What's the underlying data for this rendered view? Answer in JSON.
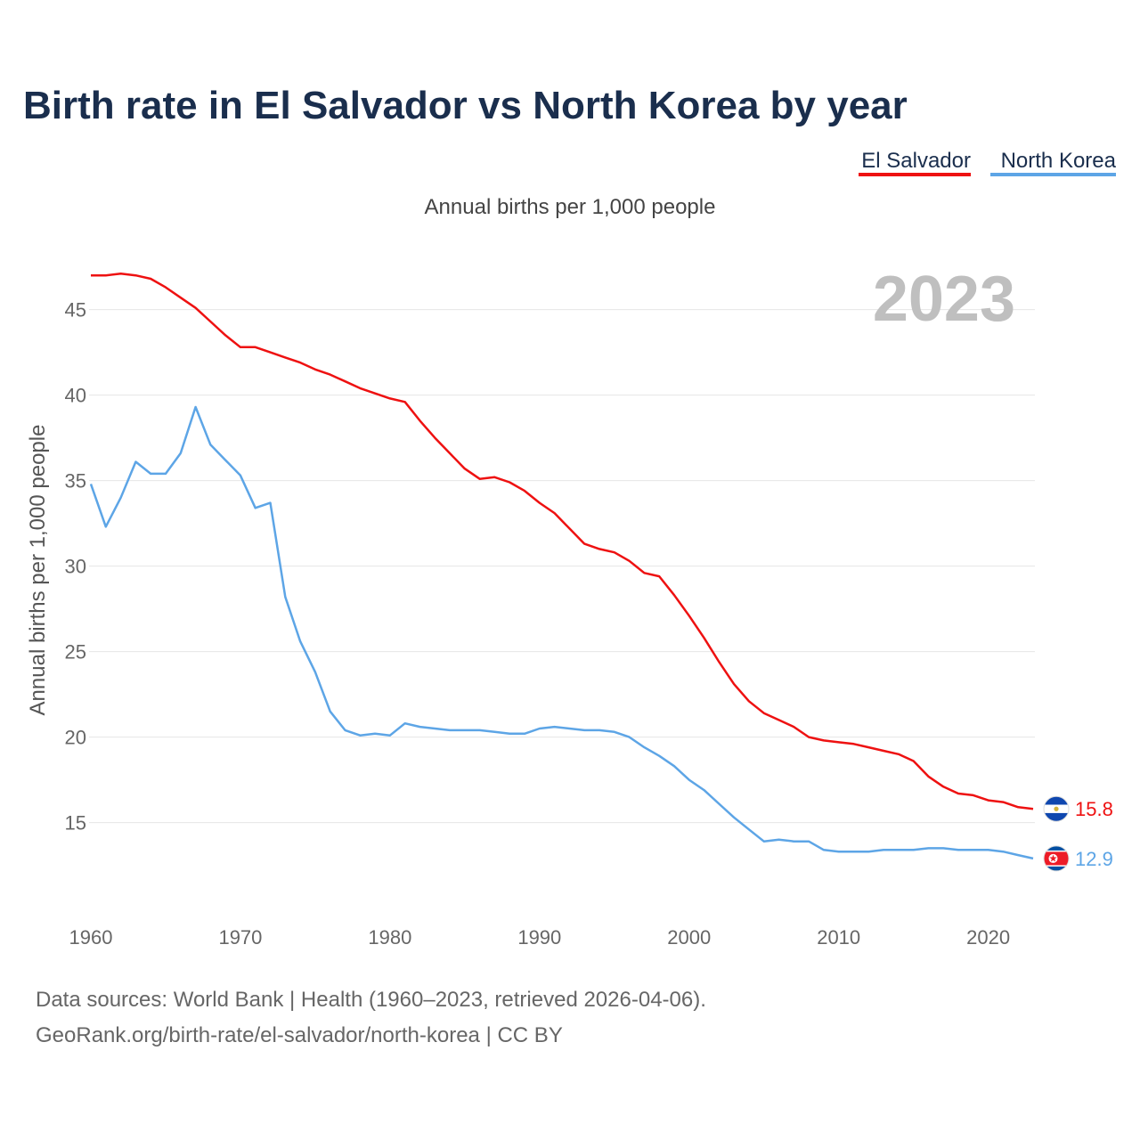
{
  "chart_data": {
    "type": "line",
    "title": "Birth rate in El Salvador vs North Korea by year",
    "subtitle": "Annual births per 1,000 people",
    "ylabel": "Annual births per 1,000 people",
    "xlabel": "",
    "current_year": "2023",
    "xlim": [
      1960,
      2023
    ],
    "ylim": [
      10.5,
      48
    ],
    "x_ticks": [
      1960,
      1970,
      1980,
      1990,
      2000,
      2010,
      2020
    ],
    "y_ticks": [
      15,
      20,
      25,
      30,
      35,
      40,
      45
    ],
    "x": [
      1960,
      1961,
      1962,
      1963,
      1964,
      1965,
      1966,
      1967,
      1968,
      1969,
      1970,
      1971,
      1972,
      1973,
      1974,
      1975,
      1976,
      1977,
      1978,
      1979,
      1980,
      1981,
      1982,
      1983,
      1984,
      1985,
      1986,
      1987,
      1988,
      1989,
      1990,
      1991,
      1992,
      1993,
      1994,
      1995,
      1996,
      1997,
      1998,
      1999,
      2000,
      2001,
      2002,
      2003,
      2004,
      2005,
      2006,
      2007,
      2008,
      2009,
      2010,
      2011,
      2012,
      2013,
      2014,
      2015,
      2016,
      2017,
      2018,
      2019,
      2020,
      2021,
      2022,
      2023
    ],
    "series": [
      {
        "name": "El Salvador",
        "color": "#ee1111",
        "end_label": "15.8",
        "flag": "el-salvador-flag-icon",
        "values": [
          47.0,
          47.0,
          47.1,
          47.0,
          46.8,
          46.3,
          45.7,
          45.1,
          44.3,
          43.5,
          42.8,
          42.8,
          42.5,
          42.2,
          41.9,
          41.5,
          41.2,
          40.8,
          40.4,
          40.1,
          39.8,
          39.6,
          38.5,
          37.5,
          36.6,
          35.7,
          35.1,
          35.2,
          34.9,
          34.4,
          33.7,
          33.1,
          32.2,
          31.3,
          31.0,
          30.8,
          30.3,
          29.6,
          29.4,
          28.3,
          27.1,
          25.8,
          24.4,
          23.1,
          22.1,
          21.4,
          21.0,
          20.6,
          20.0,
          19.8,
          19.7,
          19.6,
          19.4,
          19.2,
          19.0,
          18.6,
          17.7,
          17.1,
          16.7,
          16.6,
          16.3,
          16.2,
          15.9,
          15.8
        ]
      },
      {
        "name": "North Korea",
        "color": "#5da5e6",
        "end_label": "12.9",
        "flag": "north-korea-flag-icon",
        "values": [
          34.8,
          32.3,
          34.0,
          36.1,
          35.4,
          35.4,
          36.6,
          39.3,
          37.1,
          36.2,
          35.3,
          33.4,
          33.7,
          28.2,
          25.6,
          23.8,
          21.5,
          20.4,
          20.1,
          20.2,
          20.1,
          20.8,
          20.6,
          20.5,
          20.4,
          20.4,
          20.4,
          20.3,
          20.2,
          20.2,
          20.5,
          20.6,
          20.5,
          20.4,
          20.4,
          20.3,
          20.0,
          19.4,
          18.9,
          18.3,
          17.5,
          16.9,
          16.1,
          15.3,
          14.6,
          13.9,
          14.0,
          13.9,
          13.9,
          13.4,
          13.3,
          13.3,
          13.3,
          13.4,
          13.4,
          13.4,
          13.5,
          13.5,
          13.4,
          13.4,
          13.4,
          13.3,
          13.1,
          12.9
        ]
      }
    ],
    "sources_line1": "Data sources: World Bank | Health (1960–2023, retrieved 2026-04-06).",
    "sources_line2": "GeoRank.org/birth-rate/el-salvador/north-korea | CC BY"
  }
}
